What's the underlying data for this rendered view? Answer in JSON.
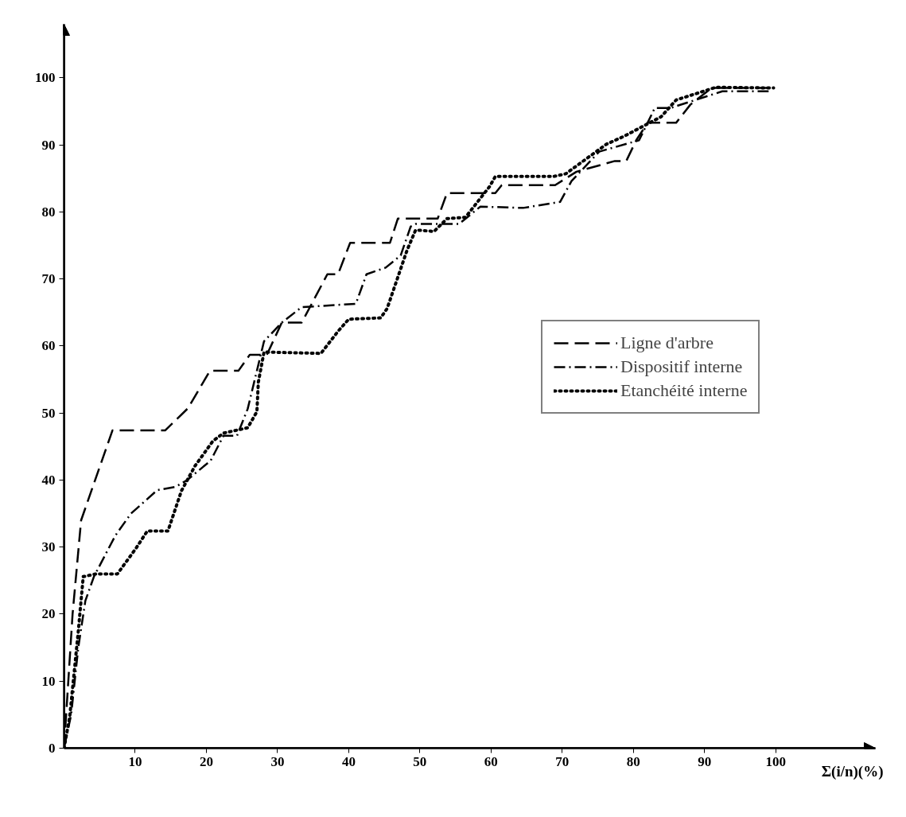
{
  "chart_data": {
    "type": "line",
    "xlabel": "Σ(i/n)(%)",
    "xlim": [
      0,
      114
    ],
    "ylim": [
      0,
      108
    ],
    "xticks": [
      10,
      20,
      30,
      40,
      50,
      60,
      70,
      80,
      90,
      100
    ],
    "yticks": [
      0,
      10,
      20,
      30,
      40,
      50,
      60,
      70,
      80,
      90,
      100
    ],
    "grid": false,
    "legend": "right",
    "marker": "none",
    "series": [
      {
        "name": "Ligne d'arbre",
        "color": "#000000",
        "line_style": "dashed",
        "x": [
          0,
          1.2,
          2.4,
          6.8,
          14.2,
          17.4,
          20.5,
          24.5,
          26.1,
          28.5,
          30.6,
          33.4,
          37,
          38.5,
          40.2,
          45.8,
          46.9,
          52.5,
          53.8,
          60.6,
          61.5,
          66.7,
          69,
          72,
          77.4,
          79,
          80.4,
          82,
          86,
          88,
          91,
          99
        ],
        "values": [
          0,
          20,
          34,
          47.4,
          47.4,
          50.7,
          56.3,
          56.3,
          58.7,
          58.7,
          63.5,
          63.5,
          70.7,
          70.7,
          75.4,
          75.4,
          79,
          79,
          82.8,
          82.8,
          84,
          84,
          84,
          86,
          87.6,
          87.6,
          90.7,
          93.3,
          93.3,
          96,
          98.5,
          98.5
        ]
      },
      {
        "name": "Dispositif interne",
        "color": "#000000",
        "line_style": "dashdot",
        "x": [
          0,
          1,
          2,
          3,
          4.2,
          7.2,
          9.4,
          13.1,
          15.7,
          17.3,
          20.6,
          22.4,
          24.3,
          25.8,
          28.1,
          30.6,
          33.4,
          41,
          42.5,
          45.2,
          47.3,
          48.7,
          49.4,
          55.5,
          58.5,
          64.5,
          69.7,
          71.3,
          75.2,
          80.8,
          83,
          85.2,
          92.5,
          99
        ],
        "values": [
          0,
          5,
          15,
          22,
          25.6,
          31.7,
          35,
          38.5,
          39,
          40,
          42.9,
          46.6,
          46.6,
          50.6,
          60.7,
          63.5,
          65.8,
          66.3,
          70.7,
          71.7,
          73.5,
          77.8,
          78.2,
          78.2,
          80.8,
          80.6,
          81.5,
          84.6,
          89,
          90.7,
          95.5,
          95.5,
          98,
          98
        ]
      },
      {
        "name": "Etanchéité interne",
        "color": "#000000",
        "line_style": "dotted",
        "x": [
          0,
          0.8,
          2,
          2.7,
          4.5,
          7.5,
          10.1,
          11.7,
          14.6,
          16.5,
          18.4,
          20.9,
          22.4,
          25.8,
          27.1,
          27.3,
          28.1,
          36.1,
          38.5,
          40,
          44.5,
          45.4,
          48.2,
          49.4,
          52,
          53.8,
          56.4,
          59.8,
          60.6,
          68.8,
          70.5,
          76.2,
          78.7,
          83.9,
          86,
          91.6,
          99.7
        ],
        "values": [
          0,
          4.7,
          17.4,
          25.6,
          26,
          26,
          29.8,
          32.4,
          32.4,
          38.4,
          42.1,
          45.8,
          47,
          47.8,
          50.2,
          54.6,
          59.1,
          58.9,
          62.2,
          64,
          64.2,
          65.6,
          74.3,
          77.3,
          77.1,
          79,
          79.2,
          83.8,
          85.3,
          85.3,
          85.7,
          90.1,
          91.3,
          94.2,
          96.7,
          98.6,
          98.5
        ]
      }
    ]
  }
}
